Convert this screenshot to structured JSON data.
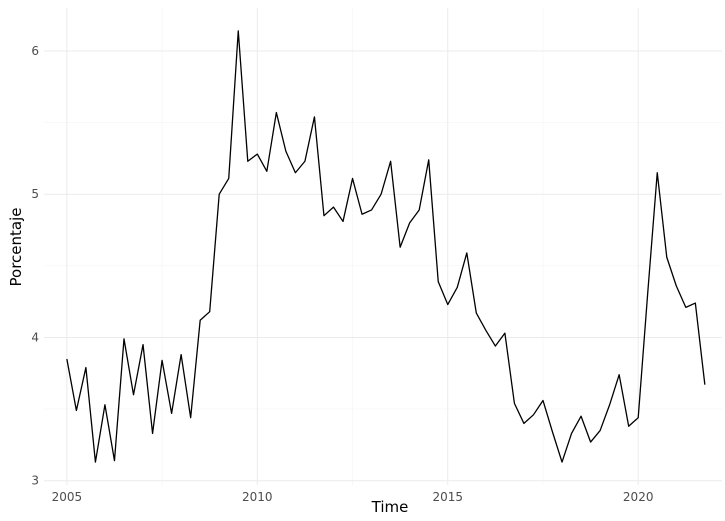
{
  "chart_data": {
    "type": "line",
    "title": "",
    "xlabel": "Time",
    "ylabel": "Porcentaje",
    "xlim": [
      2004.4,
      2022.2
    ],
    "ylim": [
      2.97,
      6.3
    ],
    "x_ticks": [
      2005,
      2010,
      2015,
      2020
    ],
    "x_tick_labels": [
      "2005",
      "2010",
      "2015",
      "2020"
    ],
    "y_ticks": [
      3,
      4,
      5,
      6
    ],
    "y_tick_labels": [
      "3",
      "4",
      "5",
      "6"
    ],
    "grid": true,
    "legend": "none",
    "line_color": "#000000",
    "grid_major_color": "#ebebeb",
    "grid_minor_color": "#f4f4f4",
    "series": [
      {
        "x": [
          2005.0,
          2005.25,
          2005.5,
          2005.75,
          2006.0,
          2006.25,
          2006.5,
          2006.75,
          2007.0,
          2007.25,
          2007.5,
          2007.75,
          2008.0,
          2008.25,
          2008.5,
          2008.75,
          2009.0,
          2009.25,
          2009.5,
          2009.75,
          2010.0,
          2010.25,
          2010.5,
          2010.75,
          2011.0,
          2011.25,
          2011.5,
          2011.75,
          2012.0,
          2012.25,
          2012.5,
          2012.75,
          2013.0,
          2013.25,
          2013.5,
          2013.75,
          2014.0,
          2014.25,
          2014.5,
          2014.75,
          2015.0,
          2015.25,
          2015.5,
          2015.75,
          2016.0,
          2016.25,
          2016.5,
          2016.75,
          2017.0,
          2017.25,
          2017.5,
          2017.75,
          2018.0,
          2018.25,
          2018.5,
          2018.75,
          2019.0,
          2019.25,
          2019.5,
          2019.75,
          2020.0,
          2020.25,
          2020.5,
          2020.75,
          2021.0,
          2021.25,
          2021.5,
          2021.75
        ],
        "y": [
          3.85,
          3.49,
          3.79,
          3.13,
          3.53,
          3.14,
          3.99,
          3.6,
          3.95,
          3.33,
          3.84,
          3.47,
          3.88,
          3.44,
          4.12,
          4.18,
          5.0,
          5.11,
          6.14,
          5.23,
          5.28,
          5.16,
          5.57,
          5.3,
          5.15,
          5.23,
          5.54,
          4.85,
          4.91,
          4.81,
          5.11,
          4.86,
          4.89,
          5.0,
          5.23,
          4.63,
          4.8,
          4.89,
          5.24,
          4.39,
          4.23,
          4.35,
          4.59,
          4.17,
          4.05,
          3.94,
          4.03,
          3.54,
          3.4,
          3.46,
          3.56,
          3.34,
          3.13,
          3.33,
          3.45,
          3.27,
          3.35,
          3.53,
          3.74,
          3.38,
          3.44,
          4.31,
          5.15,
          4.56,
          4.36,
          4.21,
          4.24,
          3.67
        ]
      }
    ]
  }
}
